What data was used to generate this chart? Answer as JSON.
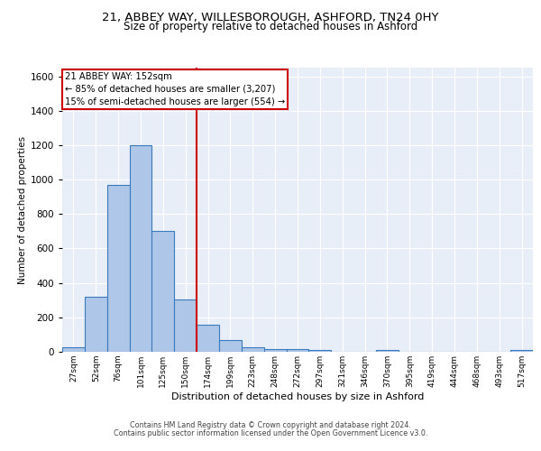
{
  "title_line1": "21, ABBEY WAY, WILLESBOROUGH, ASHFORD, TN24 0HY",
  "title_line2": "Size of property relative to detached houses in Ashford",
  "xlabel": "Distribution of detached houses by size in Ashford",
  "ylabel": "Number of detached properties",
  "categories": [
    "27sqm",
    "52sqm",
    "76sqm",
    "101sqm",
    "125sqm",
    "150sqm",
    "174sqm",
    "199sqm",
    "223sqm",
    "248sqm",
    "272sqm",
    "297sqm",
    "321sqm",
    "346sqm",
    "370sqm",
    "395sqm",
    "419sqm",
    "444sqm",
    "468sqm",
    "493sqm",
    "517sqm"
  ],
  "values": [
    28,
    320,
    968,
    1200,
    700,
    305,
    155,
    70,
    28,
    18,
    15,
    10,
    0,
    0,
    12,
    0,
    0,
    0,
    0,
    0,
    12
  ],
  "bar_color": "#aec6e8",
  "bar_edge_color": "#3a7abf",
  "vline_x": 5.5,
  "vline_color": "#cc0000",
  "annotation_text": "21 ABBEY WAY: 152sqm\n← 85% of detached houses are smaller (3,207)\n15% of semi-detached houses are larger (554) →",
  "annotation_box_color": "#ffffff",
  "annotation_box_edge": "#cc0000",
  "ylim": [
    0,
    1650
  ],
  "yticks": [
    0,
    200,
    400,
    600,
    800,
    1000,
    1200,
    1400,
    1600
  ],
  "background_color": "#e8eef7",
  "footer_line1": "Contains HM Land Registry data © Crown copyright and database right 2024.",
  "footer_line2": "Contains public sector information licensed under the Open Government Licence v3.0."
}
